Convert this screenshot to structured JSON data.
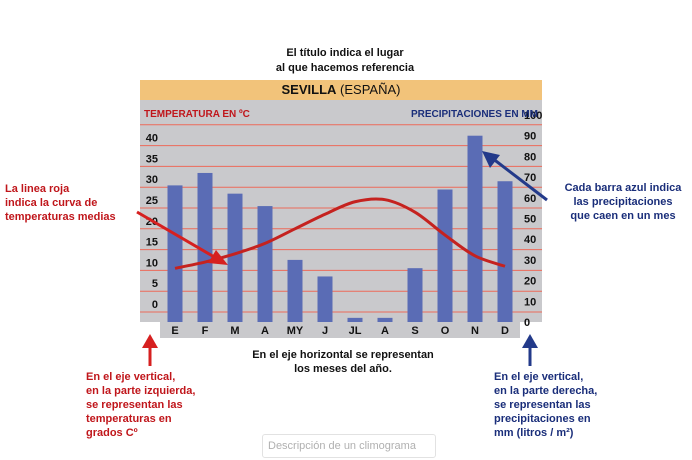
{
  "annotations": {
    "top": [
      "El título indica el lugar",
      "al que hacemos referencia"
    ],
    "left": [
      "La linea roja",
      "indica la curva de",
      "temperaturas medias"
    ],
    "right": [
      "Cada barra azul indica",
      "las precipitaciones",
      "que caen en un mes"
    ],
    "bottom": [
      "En el eje horizontal se representan",
      "los meses del año."
    ],
    "bottom_left": [
      "En el eje vertical,",
      "en la parte izquierda,",
      "se representan las",
      "temperaturas en",
      "grados Cº"
    ],
    "bottom_right": [
      "En el eje vertical,",
      "en la parte derecha,",
      "se representan las",
      "precipitaciones en",
      "mm (litros / m²)"
    ]
  },
  "caption_field": "Descripción de un climograma",
  "colors": {
    "plot_bg": "#c9c9cc",
    "bars": "#5a6cb5",
    "temp_line": "#c5221f",
    "grid": "#ec6a5a",
    "title_band": "#f2c37a",
    "left_axis_text": "#c0161b",
    "right_axis_text": "#1a2e7a",
    "arrow_red": "#d62020",
    "arrow_blue": "#233a8a"
  },
  "chart_data": {
    "type": "bar",
    "title": "SEVILLA",
    "subtitle": "(ESPAÑA)",
    "left_axis_label": "TEMPERATURA EN ºC",
    "right_axis_label": "PRECIPITACIONES EN MM",
    "categories": [
      "E",
      "F",
      "M",
      "A",
      "MY",
      "J",
      "JL",
      "A",
      "S",
      "O",
      "N",
      "D"
    ],
    "precipitation_mm": [
      66,
      72,
      62,
      56,
      30,
      22,
      2,
      2,
      26,
      64,
      90,
      68
    ],
    "temperature_c": [
      10.5,
      12,
      14,
      16.5,
      20,
      23.5,
      26.5,
      27,
      24,
      18.5,
      13.5,
      11
    ],
    "left_ylim": [
      0,
      45
    ],
    "left_ticks": [
      0,
      5,
      10,
      15,
      20,
      25,
      30,
      35,
      40
    ],
    "right_ylim": [
      0,
      100
    ],
    "right_ticks": [
      0,
      10,
      20,
      30,
      40,
      50,
      60,
      70,
      80,
      90,
      100
    ],
    "grid": true
  }
}
